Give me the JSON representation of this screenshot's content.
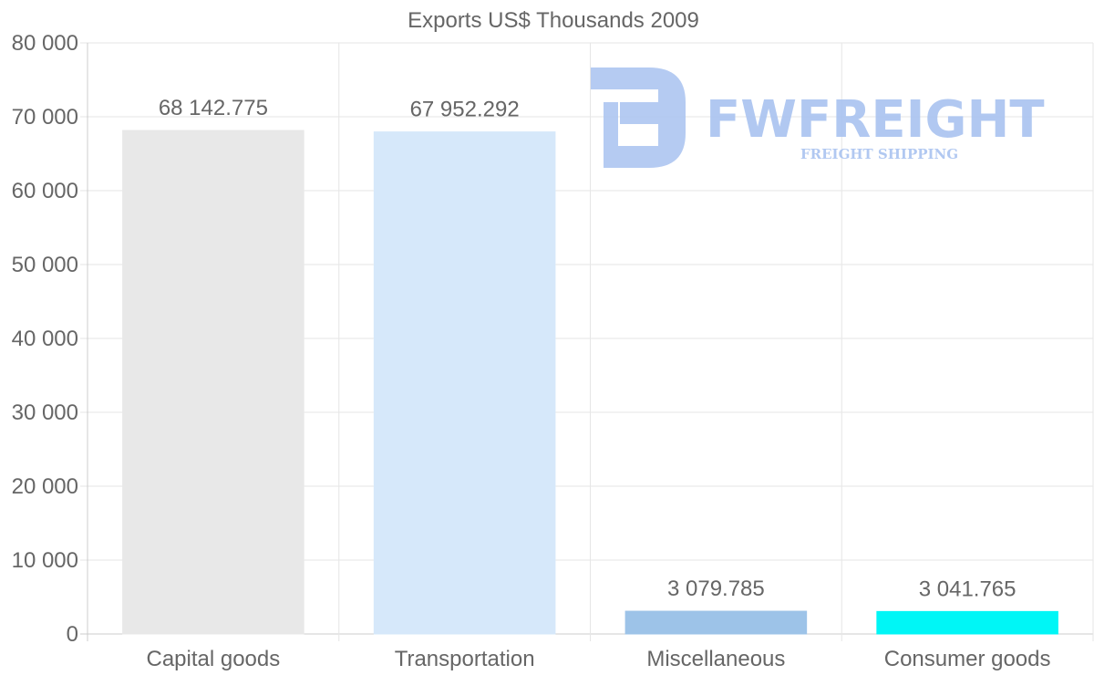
{
  "chart_data": {
    "type": "bar",
    "title": "Exports US$ Thousands 2009",
    "categories": [
      "Capital goods",
      "Transportation",
      "Miscellaneous",
      "Consumer goods"
    ],
    "values": [
      68142.775,
      67952.292,
      3079.785,
      3041.765
    ],
    "value_labels": [
      "68 142.775",
      "67 952.292",
      "3 079.785",
      "3 041.765"
    ],
    "colors": [
      "#e8e8e8",
      "#d6e8fa",
      "#9dc3e8",
      "#00f6f6"
    ],
    "ylim": [
      0,
      80000
    ],
    "yticks": [
      0,
      10000,
      20000,
      30000,
      40000,
      50000,
      60000,
      70000,
      80000
    ],
    "ytick_labels": [
      "0",
      "10 000",
      "20 000",
      "30 000",
      "40 000",
      "50 000",
      "60 000",
      "70 000",
      "80 000"
    ],
    "xlabel": "",
    "ylabel": "",
    "grid": true,
    "legend": "none"
  },
  "watermark": {
    "brand": "FWFREIGHT",
    "tagline": "FREIGHT SHIPPING",
    "icon": "fw-logo-icon"
  }
}
